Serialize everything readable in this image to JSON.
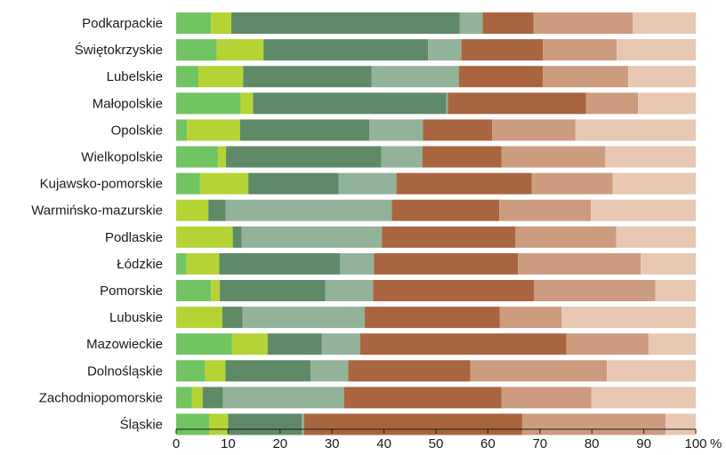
{
  "chart_data": {
    "type": "bar",
    "orientation": "horizontal",
    "stacked": true,
    "categories": [
      "Podkarpackie",
      "Świętokrzyskie",
      "Lubelskie",
      "Małopolskie",
      "Opolskie",
      "Wielkopolskie",
      "Kujawsko-pomorskie",
      "Warmińsko-mazurskie",
      "Podlaskie",
      "Łódzkie",
      "Pomorskie",
      "Lubuskie",
      "Mazowieckie",
      "Dolnośląskie",
      "Zachodniopomorskie",
      "Śląskie"
    ],
    "series": [
      {
        "color": "#72c462",
        "values": [
          6.7,
          7.8,
          4.3,
          12.4,
          2.1,
          8.1,
          4.6,
          0.0,
          0.0,
          2.0,
          6.7,
          0.0,
          10.7,
          5.6,
          3.0,
          6.4
        ]
      },
      {
        "color": "#b5d334",
        "values": [
          3.9,
          9.0,
          8.6,
          2.4,
          10.2,
          1.5,
          9.3,
          6.2,
          10.9,
          6.3,
          1.7,
          8.9,
          6.9,
          3.9,
          2.1,
          3.6
        ]
      },
      {
        "color": "#5f8a68",
        "values": [
          44.0,
          31.7,
          24.7,
          37.2,
          24.9,
          29.9,
          17.4,
          3.3,
          1.7,
          23.2,
          20.3,
          3.9,
          10.4,
          16.4,
          3.9,
          14.2
        ]
      },
      {
        "color": "#93b29a",
        "values": [
          4.4,
          6.4,
          16.8,
          0.3,
          10.3,
          7.9,
          11.1,
          32.0,
          27.0,
          6.6,
          9.2,
          23.5,
          7.4,
          7.2,
          23.3,
          0.4
        ]
      },
      {
        "color": "#a9653f",
        "values": [
          9.8,
          15.7,
          16.2,
          26.6,
          13.3,
          15.2,
          26.0,
          20.7,
          25.7,
          27.7,
          31.0,
          26.0,
          39.7,
          23.5,
          30.3,
          42.0
        ]
      },
      {
        "color": "#cc9c7e",
        "values": [
          19.1,
          14.2,
          16.4,
          10.0,
          16.0,
          20.0,
          15.6,
          17.6,
          19.4,
          23.6,
          23.3,
          11.9,
          15.8,
          26.3,
          17.3,
          27.6
        ]
      },
      {
        "color": "#e8c8b2",
        "values": [
          12.1,
          15.2,
          13.0,
          11.1,
          23.2,
          17.4,
          16.0,
          20.2,
          15.3,
          10.6,
          7.8,
          25.8,
          9.1,
          17.1,
          20.1,
          5.8
        ]
      }
    ],
    "xlim": [
      0,
      100
    ],
    "xticks": [
      "0",
      "10",
      "20",
      "30",
      "40",
      "50",
      "60",
      "70",
      "80",
      "90",
      "100"
    ],
    "x_unit_label": "%",
    "grid": false,
    "legend": "none"
  }
}
